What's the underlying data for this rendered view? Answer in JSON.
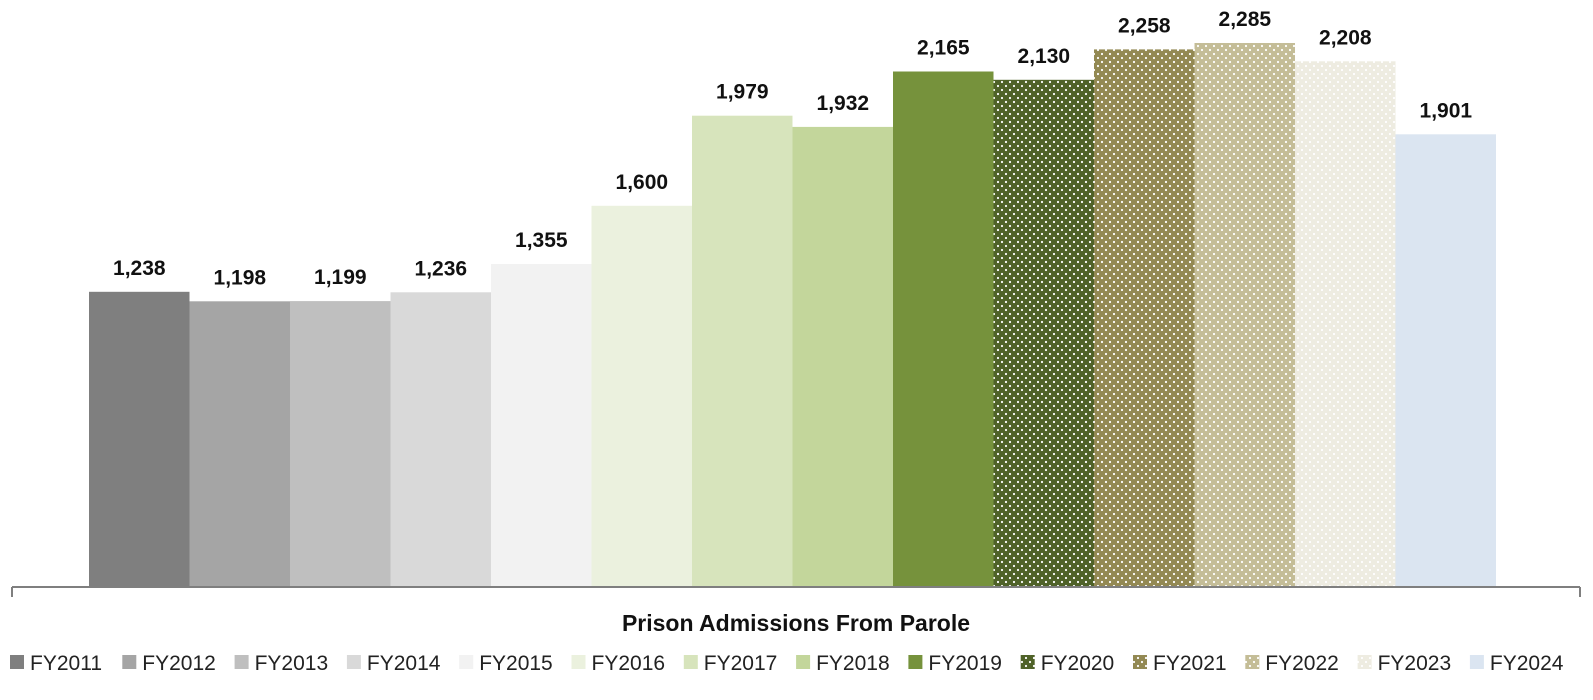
{
  "chart_data": {
    "type": "bar",
    "categories": [
      "Prison Admissions From Parole"
    ],
    "series": [
      {
        "name": "FY2011",
        "values": [
          1238
        ],
        "color": "#7f7f7f",
        "pattern": "solid"
      },
      {
        "name": "FY2012",
        "values": [
          1198
        ],
        "color": "#a5a5a5",
        "pattern": "solid"
      },
      {
        "name": "FY2013",
        "values": [
          1199
        ],
        "color": "#bfbfbf",
        "pattern": "solid"
      },
      {
        "name": "FY2014",
        "values": [
          1236
        ],
        "color": "#d9d9d9",
        "pattern": "solid"
      },
      {
        "name": "FY2015",
        "values": [
          1355
        ],
        "color": "#f2f2f2",
        "pattern": "solid"
      },
      {
        "name": "FY2016",
        "values": [
          1600
        ],
        "color": "#ebf1de",
        "pattern": "solid"
      },
      {
        "name": "FY2017",
        "values": [
          1979
        ],
        "color": "#d7e4bc",
        "pattern": "solid"
      },
      {
        "name": "FY2018",
        "values": [
          1932
        ],
        "color": "#c3d69b",
        "pattern": "solid"
      },
      {
        "name": "FY2019",
        "values": [
          2165
        ],
        "color": "#76923c",
        "pattern": "solid"
      },
      {
        "name": "FY2020",
        "values": [
          2130
        ],
        "color": "#4f6228",
        "pattern": "dots"
      },
      {
        "name": "FY2021",
        "values": [
          2258
        ],
        "color": "#938953",
        "pattern": "dots"
      },
      {
        "name": "FY2022",
        "values": [
          2285
        ],
        "color": "#c4bd97",
        "pattern": "dots"
      },
      {
        "name": "FY2023",
        "values": [
          2208
        ],
        "color": "#eeece1",
        "pattern": "dots"
      },
      {
        "name": "FY2024",
        "values": [
          1901
        ],
        "color": "#dbe5f1",
        "pattern": "solid"
      }
    ],
    "value_labels": [
      "1,238",
      "1,198",
      "1,199",
      "1,236",
      "1,355",
      "1,600",
      "1,979",
      "1,932",
      "2,165",
      "2,130",
      "2,258",
      "2,285",
      "2,208",
      "1,901"
    ],
    "ylim": [
      0,
      2400
    ],
    "grid": false,
    "legend_position": "bottom",
    "xlabel": "",
    "ylabel": ""
  }
}
